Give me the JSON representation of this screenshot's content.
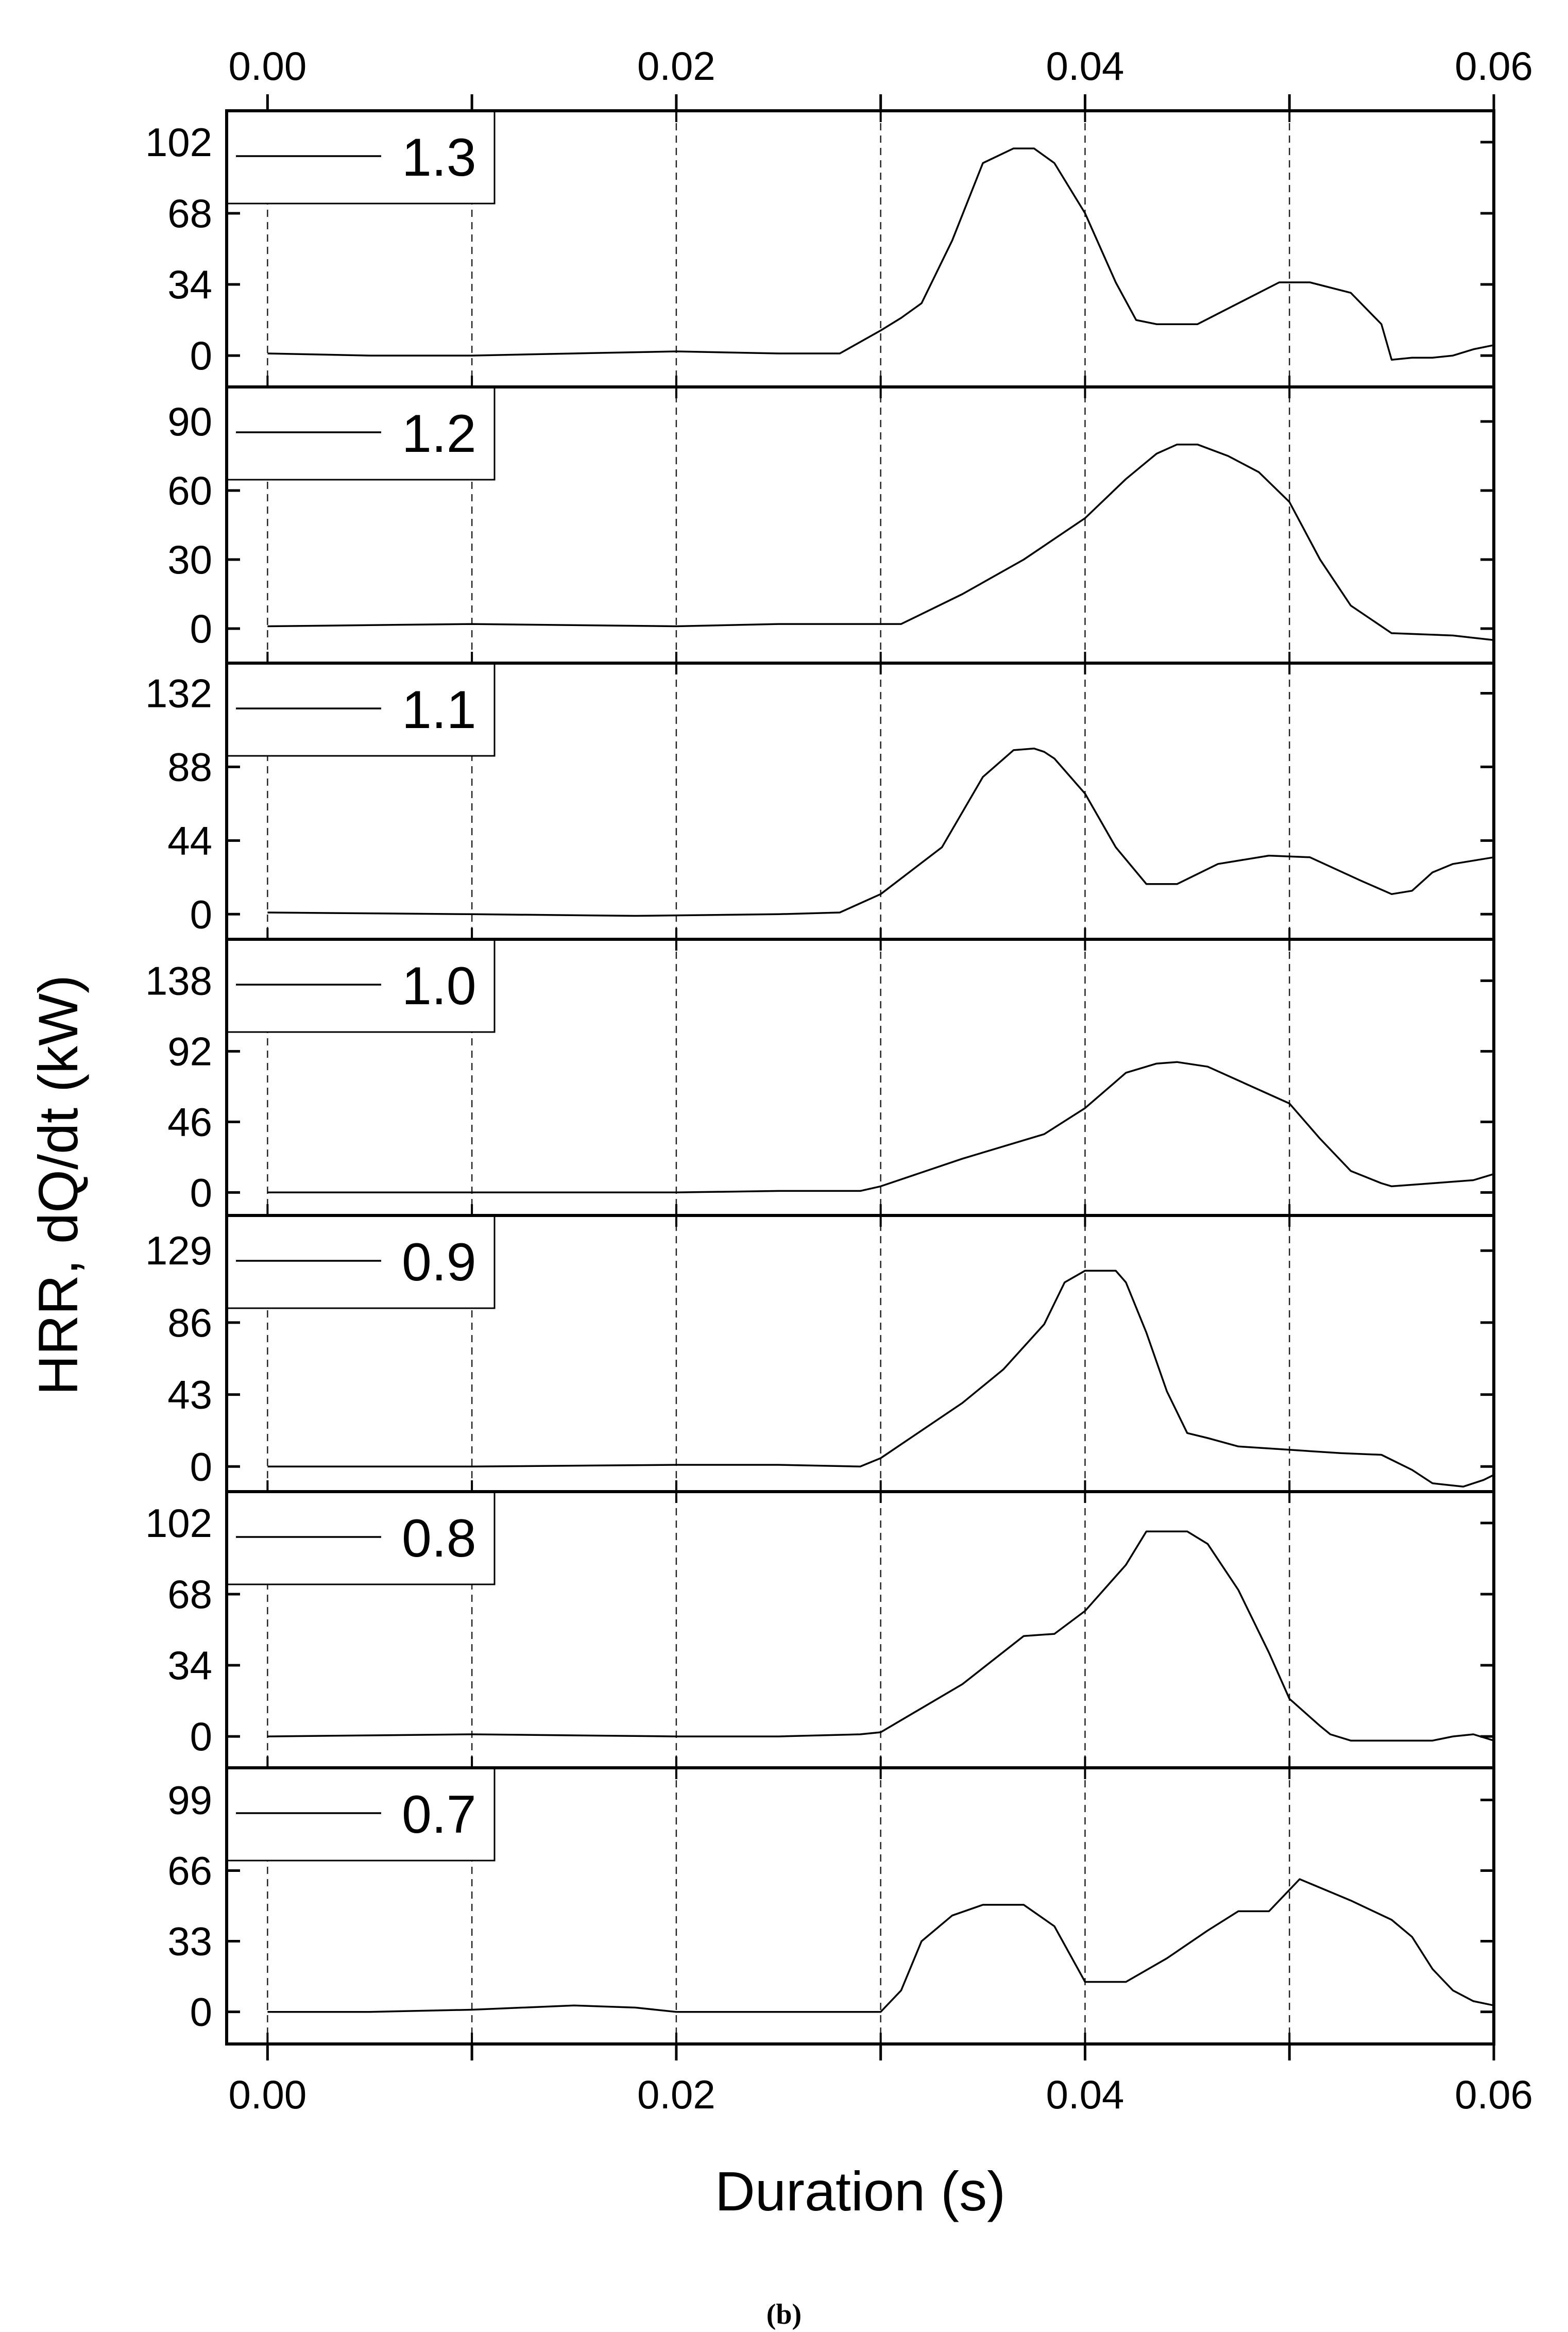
{
  "chart_data": {
    "type": "line",
    "xlabel": "Duration (s)",
    "ylabel": "HRR, dQ/dt (kW)",
    "caption": "(b)",
    "xlim": [
      -0.002,
      0.06
    ],
    "x_tick_values": [
      0.0,
      0.01,
      0.02,
      0.03,
      0.04,
      0.05,
      0.06
    ],
    "x_tick_labels": [
      "0.00",
      "0.02",
      "0.04",
      "0.06"
    ],
    "x_tick_label_values": [
      0.0,
      0.02,
      0.04,
      0.06
    ],
    "grid": "vertical dashed at every 0.01 s",
    "series": [
      {
        "name": "1.3",
        "ylim": [
          -15,
          117
        ],
        "y_ticks": [
          0,
          34,
          68,
          102
        ],
        "y_tick_labels": [
          "0",
          "34",
          "68",
          "102"
        ],
        "x": [
          0,
          0.005,
          0.01,
          0.015,
          0.02,
          0.025,
          0.028,
          0.03,
          0.031,
          0.032,
          0.0335,
          0.035,
          0.0365,
          0.0375,
          0.0385,
          0.04,
          0.0415,
          0.0425,
          0.0435,
          0.0455,
          0.0475,
          0.0495,
          0.051,
          0.053,
          0.0545,
          0.055,
          0.056,
          0.057,
          0.058,
          0.059,
          0.06
        ],
        "y": [
          1,
          0,
          0,
          1,
          2,
          1,
          1,
          12,
          18,
          25,
          55,
          92,
          99,
          99,
          92,
          68,
          35,
          17,
          15,
          15,
          25,
          35,
          35,
          30,
          15,
          -2,
          -1,
          -1,
          0,
          3,
          5
        ]
      },
      {
        "name": "1.2",
        "ylim": [
          -15,
          105
        ],
        "y_ticks": [
          0,
          30,
          60,
          90
        ],
        "y_tick_labels": [
          "0",
          "30",
          "60",
          "90"
        ],
        "x": [
          0,
          0.01,
          0.02,
          0.025,
          0.028,
          0.03,
          0.031,
          0.034,
          0.037,
          0.04,
          0.042,
          0.0435,
          0.0445,
          0.0455,
          0.047,
          0.0485,
          0.05,
          0.0515,
          0.053,
          0.055,
          0.058,
          0.059,
          0.06
        ],
        "y": [
          1,
          2,
          1,
          2,
          2,
          2,
          2,
          15,
          30,
          48,
          65,
          76,
          80,
          80,
          75,
          68,
          55,
          30,
          10,
          -2,
          -3,
          -4,
          -5
        ]
      },
      {
        "name": "1.1",
        "ylim": [
          -15,
          150
        ],
        "y_ticks": [
          0,
          44,
          88,
          132
        ],
        "y_tick_labels": [
          "0",
          "44",
          "88",
          "132"
        ],
        "x": [
          0,
          0.01,
          0.018,
          0.025,
          0.028,
          0.03,
          0.033,
          0.035,
          0.0365,
          0.0375,
          0.038,
          0.0385,
          0.04,
          0.0415,
          0.043,
          0.0445,
          0.0465,
          0.049,
          0.051,
          0.0535,
          0.055,
          0.056,
          0.057,
          0.058,
          0.059,
          0.06
        ],
        "y": [
          1,
          0,
          -1,
          0,
          1,
          12,
          40,
          82,
          98,
          99,
          97,
          93,
          72,
          40,
          18,
          18,
          30,
          35,
          34,
          20,
          12,
          14,
          25,
          30,
          32,
          34
        ]
      },
      {
        "name": "1.0",
        "ylim": [
          -15,
          165
        ],
        "y_ticks": [
          0,
          46,
          92,
          138
        ],
        "y_tick_labels": [
          "0",
          "46",
          "92",
          "138"
        ],
        "x": [
          0,
          0.01,
          0.02,
          0.025,
          0.029,
          0.03,
          0.034,
          0.038,
          0.04,
          0.042,
          0.0435,
          0.0445,
          0.046,
          0.05,
          0.0515,
          0.053,
          0.0545,
          0.055,
          0.057,
          0.059,
          0.06
        ],
        "y": [
          0,
          0,
          0,
          1,
          1,
          4,
          22,
          38,
          55,
          78,
          84,
          85,
          82,
          58,
          35,
          14,
          6,
          4,
          6,
          8,
          12
        ]
      },
      {
        "name": "0.9",
        "ylim": [
          -15,
          150
        ],
        "y_ticks": [
          0,
          43,
          86,
          129
        ],
        "y_tick_labels": [
          "0",
          "43",
          "86",
          "129"
        ],
        "x": [
          0,
          0.01,
          0.02,
          0.025,
          0.029,
          0.03,
          0.034,
          0.036,
          0.038,
          0.039,
          0.04,
          0.0415,
          0.042,
          0.043,
          0.044,
          0.045,
          0.046,
          0.0475,
          0.05,
          0.0525,
          0.0545,
          0.056,
          0.057,
          0.0585,
          0.0595,
          0.06
        ],
        "y": [
          0,
          0,
          1,
          1,
          0,
          5,
          38,
          58,
          85,
          110,
          117,
          117,
          110,
          80,
          45,
          20,
          17,
          12,
          10,
          8,
          7,
          -2,
          -10,
          -12,
          -8,
          -5
        ]
      },
      {
        "name": "0.8",
        "ylim": [
          -15,
          117
        ],
        "y_ticks": [
          0,
          34,
          68,
          102
        ],
        "y_tick_labels": [
          "0",
          "34",
          "68",
          "102"
        ],
        "x": [
          0,
          0.01,
          0.02,
          0.025,
          0.029,
          0.03,
          0.034,
          0.037,
          0.0385,
          0.04,
          0.042,
          0.043,
          0.045,
          0.046,
          0.0475,
          0.049,
          0.05,
          0.0515,
          0.052,
          0.053,
          0.055,
          0.057,
          0.058,
          0.059,
          0.06
        ],
        "y": [
          0,
          1,
          0,
          0,
          1,
          2,
          25,
          48,
          49,
          60,
          82,
          98,
          98,
          92,
          70,
          40,
          18,
          5,
          1,
          -2,
          -2,
          -2,
          0,
          1,
          -2
        ]
      },
      {
        "name": "0.7",
        "ylim": [
          -15,
          114
        ],
        "y_ticks": [
          0,
          33,
          66,
          99
        ],
        "y_tick_labels": [
          "0",
          "33",
          "66",
          "99"
        ],
        "x": [
          0,
          0.005,
          0.01,
          0.015,
          0.018,
          0.02,
          0.025,
          0.029,
          0.03,
          0.031,
          0.032,
          0.0335,
          0.035,
          0.036,
          0.037,
          0.0385,
          0.04,
          0.042,
          0.044,
          0.046,
          0.0475,
          0.049,
          0.0505,
          0.053,
          0.055,
          0.056,
          0.057,
          0.058,
          0.059,
          0.06
        ],
        "y": [
          0,
          0,
          1,
          3,
          2,
          0,
          0,
          0,
          0,
          10,
          33,
          45,
          50,
          50,
          50,
          40,
          14,
          14,
          25,
          38,
          47,
          47,
          62,
          52,
          43,
          35,
          20,
          10,
          5,
          3
        ]
      }
    ]
  }
}
